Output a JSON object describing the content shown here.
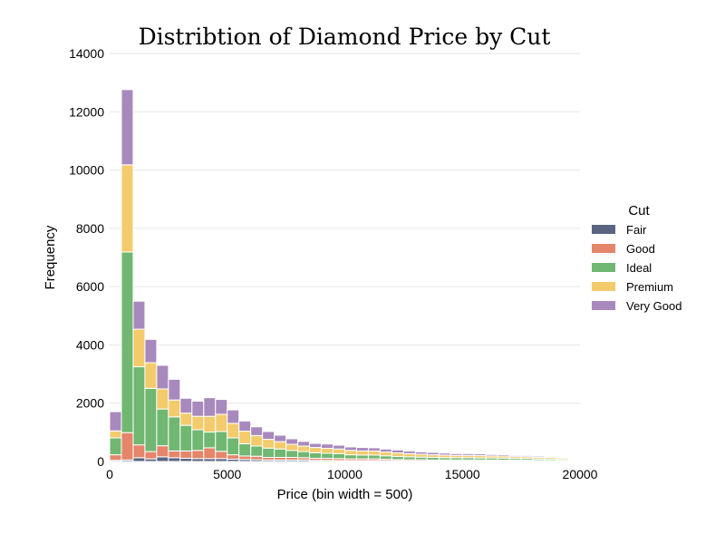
{
  "chart_data": {
    "type": "bar",
    "stacked": true,
    "title": "Distribtion of Diamond Price by Cut",
    "xlabel": "Price (bin width = 500)",
    "ylabel": "Frequency",
    "xlim": [
      0,
      20000
    ],
    "ylim": [
      0,
      14000
    ],
    "x_ticks": [
      0,
      5000,
      10000,
      15000,
      20000
    ],
    "y_ticks": [
      0,
      2000,
      4000,
      6000,
      8000,
      10000,
      12000,
      14000
    ],
    "bin_width": 500,
    "bin_starts": [
      0,
      500,
      1000,
      1500,
      2000,
      2500,
      3000,
      3500,
      4000,
      4500,
      5000,
      5500,
      6000,
      6500,
      7000,
      7500,
      8000,
      8500,
      9000,
      9500,
      10000,
      10500,
      11000,
      11500,
      12000,
      12500,
      13000,
      13500,
      14000,
      14500,
      15000,
      15500,
      16000,
      16500,
      17000,
      17500,
      18000,
      18500,
      19000
    ],
    "grid": "horizontal",
    "legend": {
      "title": "Cut",
      "position": "right"
    },
    "series": [
      {
        "name": "Fair",
        "color": "#5a6581",
        "values": [
          40,
          50,
          130,
          90,
          160,
          130,
          110,
          100,
          100,
          100,
          80,
          70,
          60,
          50,
          50,
          50,
          50,
          40,
          40,
          30,
          30,
          30,
          30,
          25,
          25,
          20,
          20,
          20,
          20,
          20,
          20,
          20,
          20,
          15,
          15,
          15,
          15,
          15,
          10
        ]
      },
      {
        "name": "Good",
        "color": "#e5856a",
        "values": [
          190,
          940,
          440,
          250,
          380,
          230,
          250,
          280,
          370,
          250,
          150,
          120,
          120,
          90,
          90,
          90,
          80,
          70,
          70,
          70,
          60,
          60,
          60,
          50,
          40,
          40,
          40,
          30,
          30,
          30,
          30,
          30,
          30,
          30,
          30,
          30,
          20,
          20,
          20
        ]
      },
      {
        "name": "Ideal",
        "color": "#70b771",
        "values": [
          580,
          6200,
          2680,
          2170,
          1260,
          1170,
          880,
          710,
          540,
          680,
          580,
          420,
          350,
          320,
          290,
          240,
          210,
          190,
          170,
          170,
          140,
          130,
          130,
          120,
          110,
          100,
          90,
          90,
          80,
          80,
          80,
          70,
          70,
          70,
          60,
          60,
          50,
          50,
          40
        ]
      },
      {
        "name": "Premium",
        "color": "#f4cb6c",
        "values": [
          240,
          2990,
          1290,
          880,
          690,
          580,
          420,
          460,
          540,
          590,
          500,
          430,
          360,
          300,
          250,
          210,
          190,
          180,
          170,
          160,
          150,
          140,
          140,
          130,
          120,
          110,
          100,
          90,
          90,
          80,
          80,
          80,
          70,
          70,
          60,
          60,
          60,
          60,
          50
        ]
      },
      {
        "name": "Very Good",
        "color": "#a889bd",
        "values": [
          660,
          2580,
          960,
          800,
          810,
          710,
          510,
          520,
          640,
          510,
          460,
          350,
          300,
          270,
          220,
          190,
          160,
          140,
          150,
          130,
          120,
          120,
          110,
          100,
          100,
          90,
          80,
          80,
          70,
          60,
          60,
          60,
          50,
          50,
          40,
          40,
          40,
          30,
          30
        ]
      }
    ]
  }
}
